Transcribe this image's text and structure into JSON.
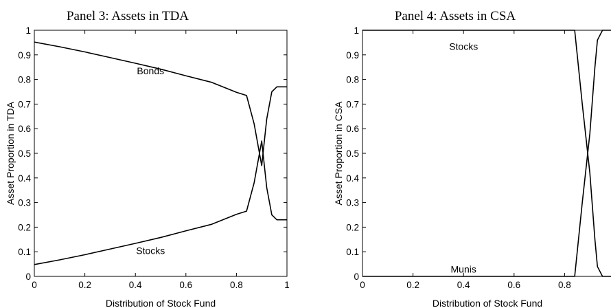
{
  "chart_data": [
    {
      "type": "line",
      "title": "Panel 3: Assets in TDA",
      "xlabel": "Distribution of Stock Fund",
      "ylabel": "Asset Proportion in TDA",
      "xlim": [
        0,
        1
      ],
      "ylim": [
        0,
        1
      ],
      "xticks": [
        "0",
        "0.2",
        "0.4",
        "0.6",
        "0.8",
        "1"
      ],
      "yticks": [
        "0",
        "0.1",
        "0.2",
        "0.3",
        "0.4",
        "0.5",
        "0.6",
        "0.7",
        "0.8",
        "0.9",
        "1"
      ],
      "grid": false,
      "series": [
        {
          "name": "Bonds",
          "x": [
            0,
            0.1,
            0.2,
            0.3,
            0.4,
            0.5,
            0.6,
            0.7,
            0.8,
            0.84,
            0.87,
            0.9,
            0.92,
            0.94,
            0.96,
            1.0
          ],
          "y": [
            0.952,
            0.933,
            0.912,
            0.889,
            0.866,
            0.842,
            0.815,
            0.789,
            0.748,
            0.735,
            0.62,
            0.45,
            0.64,
            0.75,
            0.77,
            0.77
          ]
        },
        {
          "name": "Stocks",
          "x": [
            0,
            0.1,
            0.2,
            0.3,
            0.4,
            0.5,
            0.6,
            0.7,
            0.8,
            0.84,
            0.87,
            0.9,
            0.92,
            0.94,
            0.96,
            1.0
          ],
          "y": [
            0.048,
            0.067,
            0.088,
            0.111,
            0.134,
            0.158,
            0.185,
            0.211,
            0.252,
            0.265,
            0.38,
            0.55,
            0.36,
            0.25,
            0.23,
            0.23
          ]
        }
      ],
      "annotations": [
        {
          "text": "Bonds",
          "x": 0.46,
          "y": 0.835
        },
        {
          "text": "Stocks",
          "x": 0.46,
          "y": 0.105
        }
      ]
    },
    {
      "type": "line",
      "title": "Panel 4: Assets in CSA",
      "xlabel": "Distribution of Stock Fund",
      "ylabel": "Asset Proportion in CSA",
      "xlim": [
        0,
        1
      ],
      "ylim": [
        0,
        1
      ],
      "xticks": [
        "0",
        "0.2",
        "0.4",
        "0.6",
        "0.8"
      ],
      "yticks": [
        "0",
        "0.1",
        "0.2",
        "0.3",
        "0.4",
        "0.5",
        "0.6",
        "0.7",
        "0.8",
        "0.9",
        "1"
      ],
      "grid": false,
      "series": [
        {
          "name": "Stocks",
          "x": [
            0,
            0.84,
            0.87,
            0.9,
            0.92,
            0.93,
            0.95,
            1.0
          ],
          "y": [
            1.0,
            1.0,
            0.7,
            0.42,
            0.15,
            0.04,
            0.0,
            0.0
          ]
        },
        {
          "name": "Munis",
          "x": [
            0,
            0.84,
            0.87,
            0.9,
            0.92,
            0.93,
            0.95,
            1.0
          ],
          "y": [
            0.0,
            0.0,
            0.3,
            0.58,
            0.85,
            0.96,
            1.0,
            1.0
          ]
        }
      ],
      "annotations": [
        {
          "text": "Stocks",
          "x": 0.4,
          "y": 0.935
        },
        {
          "text": "Munis",
          "x": 0.4,
          "y": 0.03
        }
      ]
    }
  ]
}
